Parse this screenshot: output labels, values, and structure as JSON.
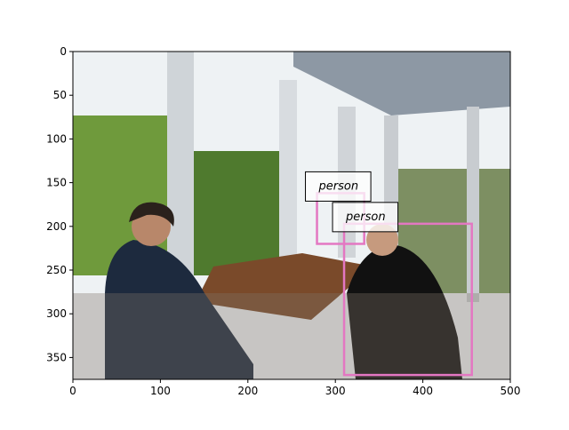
{
  "chart_data": {
    "type": "image",
    "xlim": [
      0,
      500
    ],
    "ylim": [
      375,
      0
    ],
    "xticks": [
      0,
      100,
      200,
      300,
      400,
      500
    ],
    "yticks": [
      0,
      50,
      100,
      150,
      200,
      250,
      300,
      350
    ],
    "boxes": [
      {
        "label": "person",
        "color": "#e377c2",
        "x": [
          279,
          333
        ],
        "y": [
          162,
          220
        ]
      },
      {
        "label": "person",
        "color": "#e377c2",
        "x": [
          310,
          456
        ],
        "y": [
          197,
          370
        ]
      }
    ]
  }
}
